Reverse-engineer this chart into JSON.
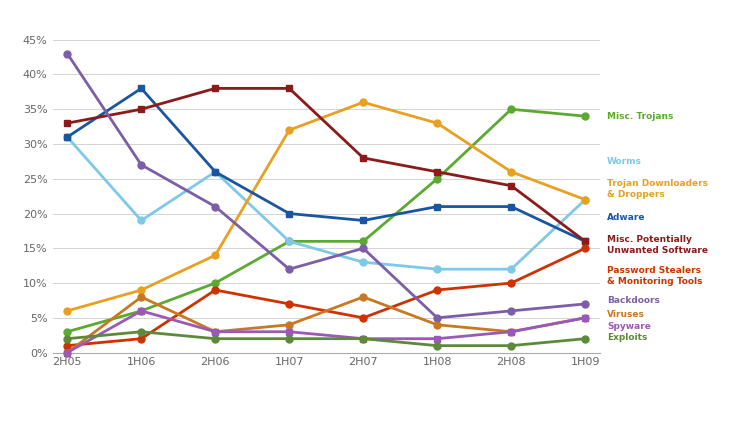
{
  "x_labels": [
    "2H05",
    "1H06",
    "2H06",
    "1H07",
    "2H07",
    "1H08",
    "2H08",
    "1H09"
  ],
  "background_color": "#ffffff",
  "series": [
    {
      "name": "Misc. Trojans",
      "color": "#5aaa32",
      "marker": "o",
      "values": [
        3,
        6,
        10,
        16,
        16,
        25,
        35,
        34
      ],
      "label_color": "#5aaa32"
    },
    {
      "name": "Worms",
      "color": "#7ec8e8",
      "marker": "o",
      "values": [
        31,
        19,
        26,
        16,
        13,
        12,
        12,
        22
      ],
      "label_color": "#7ec8e8"
    },
    {
      "name": "Trojan Downloaders\n& Droppers",
      "color": "#e8a020",
      "marker": "o",
      "values": [
        6,
        9,
        14,
        32,
        36,
        33,
        26,
        22
      ],
      "label_color": "#e8a020"
    },
    {
      "name": "Adware",
      "color": "#1a56a0",
      "marker": "s",
      "values": [
        31,
        38,
        26,
        20,
        19,
        21,
        21,
        16
      ],
      "label_color": "#1a56a0"
    },
    {
      "name": "Misc. Potentially\nUnwanted Software",
      "color": "#8b1a1a",
      "marker": "s",
      "values": [
        33,
        35,
        38,
        38,
        28,
        26,
        24,
        16
      ],
      "label_color": "#8b1a1a"
    },
    {
      "name": "Password Stealers\n& Monitoring Tools",
      "color": "#cc3300",
      "marker": "o",
      "values": [
        1,
        2,
        9,
        7,
        5,
        9,
        10,
        15
      ],
      "label_color": "#cc3300"
    },
    {
      "name": "Backdoors",
      "color": "#7b5ea7",
      "marker": "o",
      "values": [
        43,
        27,
        21,
        12,
        15,
        5,
        6,
        7
      ],
      "label_color": "#7b5ea7"
    },
    {
      "name": "Viruses",
      "color": "#c87820",
      "marker": "o",
      "values": [
        0,
        8,
        3,
        4,
        8,
        4,
        3,
        5
      ],
      "label_color": "#c87820"
    },
    {
      "name": "Spyware",
      "color": "#9b59b6",
      "marker": "s",
      "values": [
        0,
        6,
        3,
        3,
        2,
        2,
        3,
        5
      ],
      "label_color": "#9b59b6"
    },
    {
      "name": "Exploits",
      "color": "#5d8a3a",
      "marker": "o",
      "values": [
        2,
        3,
        2,
        2,
        2,
        1,
        1,
        2
      ],
      "label_color": "#5d8a3a"
    }
  ],
  "right_labels": [
    {
      "name": "Misc. Trojans",
      "y": 34.0,
      "color": "#5aaa32"
    },
    {
      "name": "Worms",
      "y": 27.5,
      "color": "#7ec8e8"
    },
    {
      "name": "Trojan Downloaders\n& Droppers",
      "y": 23.5,
      "color": "#e8a020"
    },
    {
      "name": "Adware",
      "y": 19.5,
      "color": "#1a56a0"
    },
    {
      "name": "Misc. Potentially\nUnwanted Software",
      "y": 15.5,
      "color": "#8b1a1a"
    },
    {
      "name": "Password Stealers\n& Monitoring Tools",
      "y": 11.0,
      "color": "#cc3300"
    },
    {
      "name": "Backdoors",
      "y": 7.5,
      "color": "#7b5ea7"
    },
    {
      "name": "Viruses",
      "y": 5.5,
      "color": "#c87820"
    },
    {
      "name": "Spyware",
      "y": 3.8,
      "color": "#9b59b6"
    },
    {
      "name": "Exploits",
      "y": 2.2,
      "color": "#5d8a3a"
    }
  ],
  "ylim": [
    0,
    47
  ],
  "yticks": [
    0,
    5,
    10,
    15,
    20,
    25,
    30,
    35,
    40,
    45
  ],
  "ytick_labels": [
    "0%",
    "5%",
    "10%",
    "15%",
    "20%",
    "25%",
    "30%",
    "35%",
    "40%",
    "45%"
  ]
}
